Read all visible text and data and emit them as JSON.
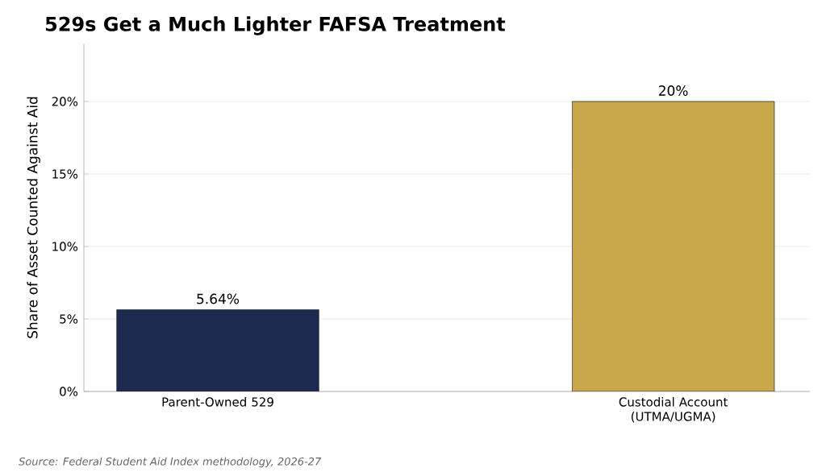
{
  "chart_data": {
    "type": "bar",
    "title": "529s Get a Much Lighter FAFSA Treatment",
    "ylabel": "Share of Asset Counted Against Aid",
    "categories": [
      "Parent-Owned 529",
      "Custodial Account (UTMA/UGMA)"
    ],
    "values": [
      5.64,
      20
    ],
    "colors": [
      "#1b2a4e",
      "#c9a84a"
    ],
    "value_labels": [
      "5.64%",
      "20%"
    ],
    "ylim": [
      0,
      24
    ],
    "yticks": [
      {
        "value": 0,
        "label": "0%"
      },
      {
        "value": 5,
        "label": "5%"
      },
      {
        "value": 10,
        "label": "10%"
      },
      {
        "value": 15,
        "label": "15%"
      },
      {
        "value": 20,
        "label": "20%"
      }
    ],
    "grid": "y",
    "annotations": [
      "Source: Federal Student Aid Index methodology, 2026-27"
    ]
  }
}
